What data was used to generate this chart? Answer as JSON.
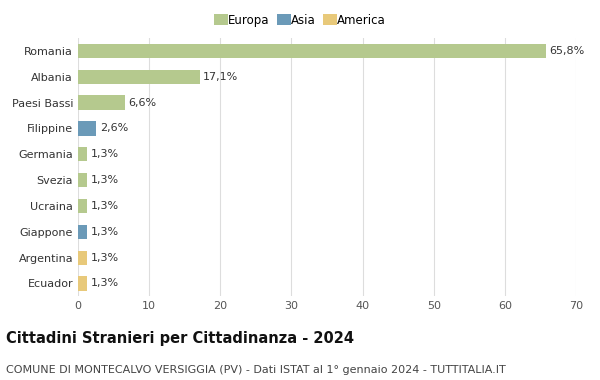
{
  "categories": [
    "Romania",
    "Albania",
    "Paesi Bassi",
    "Filippine",
    "Germania",
    "Svezia",
    "Ucraina",
    "Giappone",
    "Argentina",
    "Ecuador"
  ],
  "values": [
    65.8,
    17.1,
    6.6,
    2.6,
    1.3,
    1.3,
    1.3,
    1.3,
    1.3,
    1.3
  ],
  "labels": [
    "65,8%",
    "17,1%",
    "6,6%",
    "2,6%",
    "1,3%",
    "1,3%",
    "1,3%",
    "1,3%",
    "1,3%",
    "1,3%"
  ],
  "continent": [
    "Europa",
    "Europa",
    "Europa",
    "Asia",
    "Europa",
    "Europa",
    "Europa",
    "Asia",
    "America",
    "America"
  ],
  "colors": {
    "Europa": "#b5c98e",
    "Asia": "#6b9ab8",
    "America": "#e8c97a"
  },
  "xlim": [
    0,
    70
  ],
  "xticks": [
    0,
    10,
    20,
    30,
    40,
    50,
    60,
    70
  ],
  "title": "Cittadini Stranieri per Cittadinanza - 2024",
  "subtitle": "COMUNE DI MONTECALVO VERSIGGIA (PV) - Dati ISTAT al 1° gennaio 2024 - TUTTITALIA.IT",
  "background_color": "#ffffff",
  "grid_color": "#dddddd",
  "bar_height": 0.55,
  "title_fontsize": 10.5,
  "subtitle_fontsize": 8.0,
  "label_fontsize": 8.0,
  "tick_fontsize": 8.0,
  "legend_fontsize": 8.5
}
